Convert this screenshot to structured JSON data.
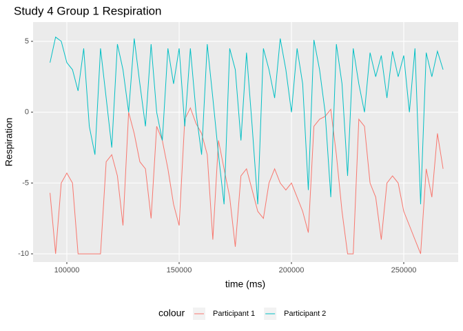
{
  "chart_data": {
    "type": "line",
    "title": "Study 4 Group 1 Respiration",
    "x_label": "time (ms)",
    "y_label": "Respiration",
    "legend_title": "colour",
    "legend_position": "bottom",
    "grid": true,
    "x": [
      92500,
      95000,
      97500,
      100000,
      102500,
      105000,
      107500,
      110000,
      112500,
      115000,
      117500,
      120000,
      122500,
      125000,
      127500,
      130000,
      132500,
      135000,
      137500,
      140000,
      142500,
      145000,
      147500,
      150000,
      152500,
      155000,
      157500,
      160000,
      162500,
      165000,
      167500,
      170000,
      172500,
      175000,
      177500,
      180000,
      182500,
      185000,
      187500,
      190000,
      192500,
      195000,
      197500,
      200000,
      202500,
      205000,
      207500,
      210000,
      212500,
      215000,
      217500,
      220000,
      222500,
      225000,
      227500,
      230000,
      232500,
      235000,
      237500,
      240000,
      242500,
      245000,
      247500,
      250000,
      252500,
      255000,
      257500,
      260000,
      262500,
      265000,
      267500
    ],
    "series": [
      {
        "name": "Participant 1",
        "color": "#F8766D",
        "values": [
          -5.7,
          -10,
          -5,
          -4.3,
          -5,
          -10,
          -10,
          -10,
          -10,
          -10,
          -3.5,
          -3,
          -4.5,
          -8,
          0,
          -1.5,
          -3.5,
          -4,
          -7.5,
          -1,
          -2,
          -4,
          -6.5,
          -8,
          -0.5,
          0.3,
          -0.8,
          -1.5,
          -3,
          -9,
          -2,
          -4,
          -6,
          -9.5,
          -4.5,
          -4,
          -5.5,
          -7,
          -7.5,
          -5,
          -4,
          -5,
          -5.5,
          -5,
          -6,
          -7,
          -8.5,
          -1,
          -0.5,
          -0.3,
          0.2,
          -3,
          -7,
          -10,
          -10,
          -0.5,
          -1,
          -5,
          -6,
          -9,
          -5,
          -4.5,
          -5,
          -7,
          -8,
          -9,
          -10,
          -4,
          -6,
          -1.5,
          -4
        ]
      },
      {
        "name": "Participant 2",
        "color": "#00BFC4",
        "values": [
          3.5,
          5.3,
          5,
          3.5,
          3,
          1.5,
          4.5,
          -1,
          -3,
          4.5,
          1,
          -2.5,
          4.8,
          3,
          0,
          5.2,
          2,
          -1,
          4.8,
          0,
          -2,
          4.5,
          2,
          4.5,
          -1,
          4.5,
          0,
          -3,
          4.8,
          1,
          -3,
          -6.5,
          4.5,
          3,
          -2,
          4.2,
          -1,
          -6.5,
          4.5,
          3,
          1,
          5.2,
          3,
          0,
          4.5,
          2,
          -5.5,
          5.1,
          3,
          0,
          -6,
          4.8,
          2,
          -4.5,
          4.5,
          2,
          0,
          4.2,
          2.5,
          4,
          1,
          4.3,
          2.5,
          4,
          0,
          4.5,
          -6.5,
          4.2,
          2.5,
          4.3,
          3
        ]
      }
    ],
    "xlim": [
      84969,
      274233
    ],
    "ylim": [
      -10.58,
      6.36
    ],
    "xticks": [
      100000,
      150000,
      200000,
      250000
    ],
    "yticks": [
      -10,
      -5,
      0,
      5
    ]
  }
}
